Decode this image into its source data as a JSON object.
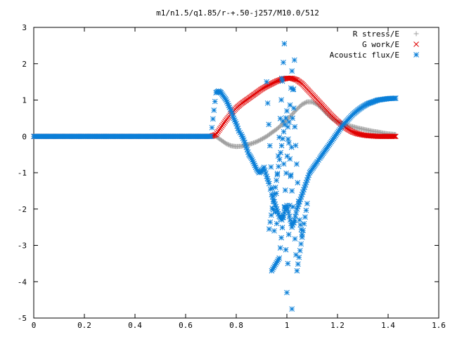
{
  "chart_data": {
    "type": "scatter",
    "title": "m1/n1.5/q1.85/r-+.50-j257/M10.0/512",
    "xlabel": "",
    "ylabel": "",
    "xlim": [
      0,
      1.6
    ],
    "ylim": [
      -5,
      3
    ],
    "x_ticks": [
      0,
      0.2,
      0.4,
      0.6,
      0.8,
      1,
      1.2,
      1.4,
      1.6
    ],
    "x_tick_labels": [
      "0",
      "0.2",
      "0.4",
      "0.6",
      "0.8",
      "1",
      "1.2",
      "1.4",
      "1.6"
    ],
    "y_ticks": [
      -5,
      -4,
      -3,
      -2,
      -1,
      0,
      1,
      2,
      3
    ],
    "y_tick_labels": [
      "-5",
      "-4",
      "-3",
      "-2",
      "-1",
      "0",
      "1",
      "2",
      "3"
    ],
    "grid": false,
    "legend_position": "top-right",
    "series": [
      {
        "name": "R stress/E",
        "marker": "plus",
        "color": "#a0a0a0",
        "x": [
          0.0,
          0.1,
          0.2,
          0.3,
          0.4,
          0.5,
          0.6,
          0.7,
          0.72,
          0.74,
          0.76,
          0.78,
          0.8,
          0.82,
          0.84,
          0.86,
          0.88,
          0.9,
          0.92,
          0.94,
          0.96,
          0.98,
          1.0,
          1.02,
          1.04,
          1.06,
          1.08,
          1.1,
          1.12,
          1.14,
          1.16,
          1.18,
          1.2,
          1.22,
          1.24,
          1.26,
          1.28,
          1.3,
          1.32,
          1.34,
          1.36,
          1.38,
          1.4,
          1.43
        ],
        "y": [
          0,
          0,
          0,
          0,
          0,
          0,
          0,
          0,
          0,
          -0.1,
          -0.2,
          -0.26,
          -0.28,
          -0.27,
          -0.24,
          -0.2,
          -0.15,
          -0.08,
          0.0,
          0.1,
          0.2,
          0.32,
          0.45,
          0.6,
          0.75,
          0.88,
          0.95,
          0.95,
          0.88,
          0.75,
          0.6,
          0.48,
          0.4,
          0.35,
          0.3,
          0.27,
          0.23,
          0.2,
          0.17,
          0.14,
          0.12,
          0.09,
          0.07,
          0.05
        ]
      },
      {
        "name": "G work/E",
        "marker": "cross",
        "color": "#e00000",
        "x": [
          0.0,
          0.1,
          0.2,
          0.3,
          0.4,
          0.5,
          0.6,
          0.7,
          0.72,
          0.74,
          0.76,
          0.78,
          0.8,
          0.82,
          0.84,
          0.86,
          0.88,
          0.9,
          0.92,
          0.94,
          0.96,
          0.98,
          1.0,
          1.02,
          1.04,
          1.06,
          1.08,
          1.1,
          1.12,
          1.14,
          1.16,
          1.18,
          1.2,
          1.22,
          1.24,
          1.26,
          1.28,
          1.3,
          1.32,
          1.34,
          1.36,
          1.38,
          1.4,
          1.43
        ],
        "y": [
          0,
          0,
          0,
          0,
          0,
          0,
          0,
          0,
          0.05,
          0.25,
          0.45,
          0.62,
          0.78,
          0.9,
          1.0,
          1.1,
          1.2,
          1.3,
          1.38,
          1.45,
          1.52,
          1.57,
          1.6,
          1.6,
          1.55,
          1.45,
          1.3,
          1.15,
          1.0,
          0.85,
          0.7,
          0.55,
          0.42,
          0.3,
          0.2,
          0.12,
          0.07,
          0.04,
          0.02,
          0.01,
          0.0,
          0.0,
          0.0,
          0.0
        ]
      },
      {
        "name": "Acoustic flux/E",
        "marker": "star",
        "color": "#0a7fd8",
        "x": [
          0.0,
          0.1,
          0.2,
          0.3,
          0.4,
          0.5,
          0.6,
          0.7,
          0.72,
          0.73,
          0.74,
          0.75,
          0.76,
          0.77,
          0.78,
          0.79,
          0.8,
          0.81,
          0.82,
          0.83,
          0.84,
          0.85,
          0.86,
          0.87,
          0.88,
          0.89,
          0.9,
          0.91,
          0.92,
          0.93,
          0.94,
          0.95,
          0.96,
          0.97,
          0.98,
          0.99,
          1.0,
          1.01,
          1.02,
          1.03,
          1.04,
          1.05,
          1.06,
          1.07,
          1.08,
          1.09,
          1.1,
          1.11,
          1.12,
          1.13,
          1.14,
          1.15,
          1.16,
          1.18,
          1.2,
          1.22,
          1.24,
          1.26,
          1.28,
          1.3,
          1.32,
          1.34,
          1.36,
          1.38,
          1.4,
          1.43,
          0.92,
          0.95,
          0.99,
          0.98,
          1.0,
          1.03,
          1.02,
          0.94,
          0.97,
          0.99,
          1.02,
          1.05,
          1.06,
          0.96,
          0.93,
          1.0,
          1.04,
          1.08
        ],
        "y": [
          0,
          0,
          0,
          0,
          0,
          0,
          0,
          0,
          1.2,
          1.25,
          1.2,
          1.1,
          1.0,
          0.85,
          0.7,
          0.5,
          0.35,
          0.15,
          0.05,
          -0.1,
          -0.3,
          -0.5,
          -0.6,
          -0.75,
          -0.9,
          -1.0,
          -0.95,
          -0.85,
          -1.1,
          -1.3,
          -1.6,
          -1.8,
          -2.0,
          -2.2,
          -2.3,
          -2.1,
          -1.9,
          -2.2,
          -2.5,
          -2.3,
          -2.0,
          -1.8,
          -1.6,
          -1.4,
          -1.2,
          -1.0,
          -0.9,
          -0.8,
          -0.7,
          -0.6,
          -0.5,
          -0.4,
          -0.3,
          -0.1,
          0.1,
          0.3,
          0.45,
          0.6,
          0.72,
          0.82,
          0.9,
          0.95,
          1.0,
          1.02,
          1.04,
          1.05,
          1.5,
          -2.6,
          2.55,
          1.6,
          -4.3,
          2.1,
          -4.75,
          -3.7,
          -3.35,
          -1.95,
          1.8,
          -2.3,
          -2.7,
          -2.4,
          -2.55,
          0.7,
          -3.7,
          -1.85
        ]
      }
    ]
  }
}
